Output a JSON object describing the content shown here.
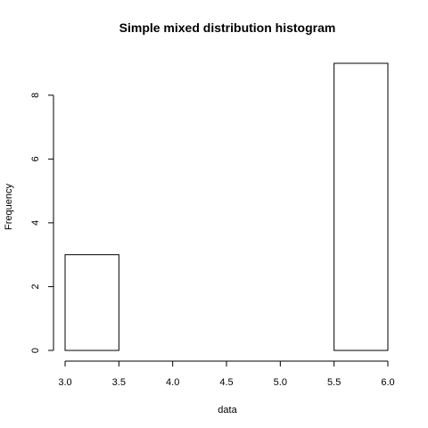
{
  "chart_data": {
    "type": "bar",
    "title": "Simple mixed distribution histogram",
    "xlabel": "data",
    "ylabel": "Frequency",
    "bins": [
      {
        "start": 3.0,
        "end": 3.5,
        "count": 3
      },
      {
        "start": 3.5,
        "end": 4.0,
        "count": 0
      },
      {
        "start": 4.0,
        "end": 4.5,
        "count": 0
      },
      {
        "start": 4.5,
        "end": 5.0,
        "count": 0
      },
      {
        "start": 5.0,
        "end": 5.5,
        "count": 0
      },
      {
        "start": 5.5,
        "end": 6.0,
        "count": 9
      }
    ],
    "xlim": [
      3.0,
      6.0
    ],
    "ylim": [
      0,
      9
    ],
    "x_ticks": [
      "3.0",
      "3.5",
      "4.0",
      "4.5",
      "5.0",
      "5.5",
      "6.0"
    ],
    "y_ticks": [
      "0",
      "2",
      "4",
      "6",
      "8"
    ],
    "grid": false
  }
}
